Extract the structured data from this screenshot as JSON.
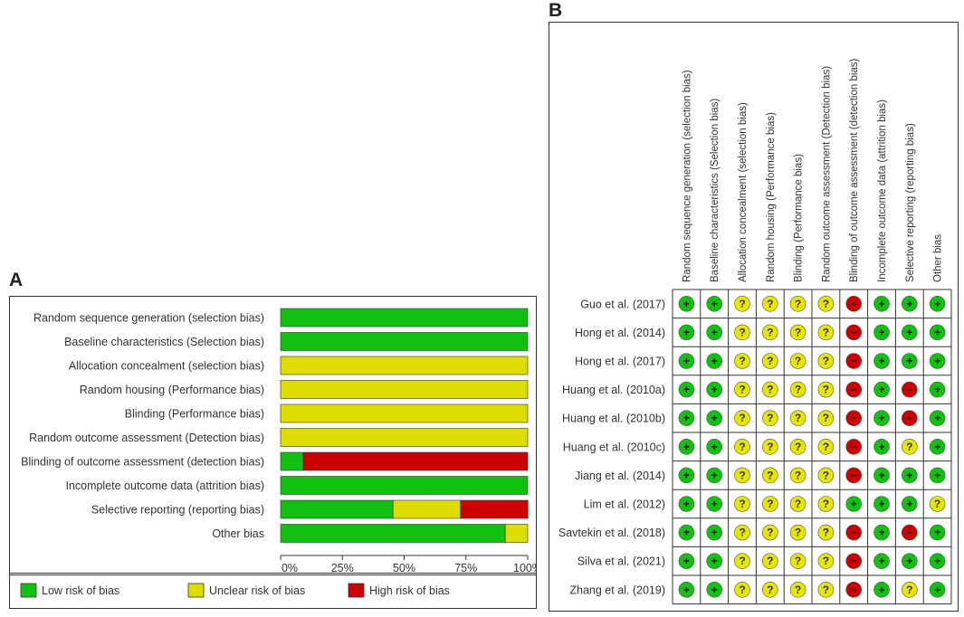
{
  "panels": {
    "a_letter": "A",
    "b_letter": "B"
  },
  "chart_data": [
    {
      "type": "bar",
      "stacked": true,
      "orientation": "horizontal",
      "title": "A",
      "categories": [
        "Random sequence generation (selection bias)",
        "Baseline characteristics (Selection bias)",
        "Allocation concealment (selection bias)",
        "Random housing (Performance bias)",
        "Blinding (Performance bias)",
        "Random outcome assessment (Detection bias)",
        "Blinding of outcome assessment (detection bias)",
        "Incomplete outcome data (attrition bias)",
        "Selective reporting (reporting bias)",
        "Other bias"
      ],
      "series": [
        {
          "name": "Low risk of bias",
          "color": "#12c012",
          "values": [
            100,
            100,
            0,
            0,
            0,
            0,
            9.1,
            100,
            45.5,
            90.9
          ]
        },
        {
          "name": "Unclear risk of bias",
          "color": "#dddd00",
          "values": [
            0,
            0,
            100,
            100,
            100,
            100,
            0,
            0,
            27.3,
            9.1
          ]
        },
        {
          "name": "High risk of bias",
          "color": "#cc0000",
          "values": [
            0,
            0,
            0,
            0,
            0,
            0,
            90.9,
            0,
            27.3,
            0
          ]
        }
      ],
      "xlim": [
        0,
        100
      ],
      "xticks": [
        "0%",
        "25%",
        "50%",
        "75%",
        "100%"
      ],
      "legend": [
        "Low risk of bias",
        "Unclear risk of bias",
        "High risk of bias"
      ],
      "legend_position": "bottom"
    },
    {
      "type": "table",
      "title": "B",
      "columns": [
        "Random sequence generation (selection bias)",
        "Baseline characteristics (Selection bias)",
        "Allocation concealment (selection bias)",
        "Random housing (Performance bias)",
        "Blinding (Performance bias)",
        "Random outcome assessment (Detection bias)",
        "Blinding of outcome assessment (detection bias)",
        "Incomplete outcome data (attrition bias)",
        "Selective reporting (reporting bias)",
        "Other bias"
      ],
      "studies": [
        {
          "name": "Guo et al. (2017)",
          "ratings": [
            "+",
            "+",
            "?",
            "?",
            "?",
            "?",
            "-",
            "+",
            "+",
            "+"
          ]
        },
        {
          "name": "Hong et al. (2014)",
          "ratings": [
            "+",
            "+",
            "?",
            "?",
            "?",
            "?",
            "-",
            "+",
            "+",
            "+"
          ]
        },
        {
          "name": "Hong et al. (2017)",
          "ratings": [
            "+",
            "+",
            "?",
            "?",
            "?",
            "?",
            "-",
            "+",
            "+",
            "+"
          ]
        },
        {
          "name": "Huang et al. (2010a)",
          "ratings": [
            "+",
            "+",
            "?",
            "?",
            "?",
            "?",
            "-",
            "+",
            "-",
            "+"
          ]
        },
        {
          "name": "Huang et al. (2010b)",
          "ratings": [
            "+",
            "+",
            "?",
            "?",
            "?",
            "?",
            "-",
            "+",
            "-",
            "+"
          ]
        },
        {
          "name": "Huang et al. (2010c)",
          "ratings": [
            "+",
            "+",
            "?",
            "?",
            "?",
            "?",
            "-",
            "+",
            "?",
            "+"
          ]
        },
        {
          "name": "Jiang et al. (2014)",
          "ratings": [
            "+",
            "+",
            "?",
            "?",
            "?",
            "?",
            "-",
            "+",
            "+",
            "+"
          ]
        },
        {
          "name": "Lim et al. (2012)",
          "ratings": [
            "+",
            "+",
            "?",
            "?",
            "?",
            "?",
            "+",
            "+",
            "+",
            "?"
          ]
        },
        {
          "name": "Savtekin et al. (2018)",
          "ratings": [
            "+",
            "+",
            "?",
            "?",
            "?",
            "?",
            "-",
            "+",
            "-",
            "+"
          ]
        },
        {
          "name": "Silva et al. (2021)",
          "ratings": [
            "+",
            "+",
            "?",
            "?",
            "?",
            "?",
            "-",
            "+",
            "+",
            "+"
          ]
        },
        {
          "name": "Zhang et al. (2019)",
          "ratings": [
            "+",
            "+",
            "?",
            "?",
            "?",
            "?",
            "-",
            "+",
            "?",
            "+"
          ]
        }
      ],
      "symbol_colors": {
        "+": "#12c012",
        "?": "#e6e600",
        "-": "#cc0000"
      },
      "symbol_glyphs": {
        "+": "+",
        "?": "?",
        "-": "−"
      }
    }
  ]
}
